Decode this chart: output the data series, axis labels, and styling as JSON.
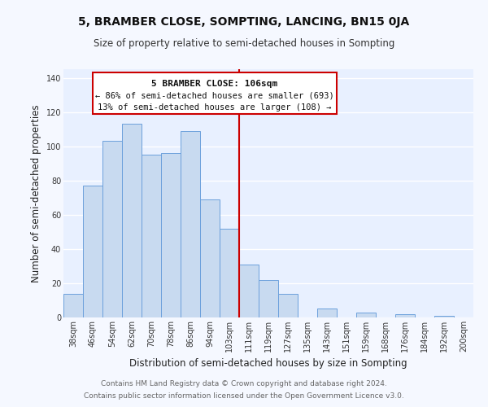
{
  "title": "5, BRAMBER CLOSE, SOMPTING, LANCING, BN15 0JA",
  "subtitle": "Size of property relative to semi-detached houses in Sompting",
  "xlabel": "Distribution of semi-detached houses by size in Sompting",
  "ylabel": "Number of semi-detached properties",
  "bar_labels": [
    "38sqm",
    "46sqm",
    "54sqm",
    "62sqm",
    "70sqm",
    "78sqm",
    "86sqm",
    "94sqm",
    "103sqm",
    "111sqm",
    "119sqm",
    "127sqm",
    "135sqm",
    "143sqm",
    "151sqm",
    "159sqm",
    "168sqm",
    "176sqm",
    "184sqm",
    "192sqm",
    "200sqm"
  ],
  "bar_heights": [
    14,
    77,
    103,
    113,
    95,
    96,
    109,
    69,
    52,
    31,
    22,
    14,
    0,
    5,
    0,
    3,
    0,
    2,
    0,
    1,
    0
  ],
  "bar_color": "#c8daf0",
  "bar_edge_color": "#6ca0dc",
  "vline_x_index": 8,
  "vline_color": "#cc0000",
  "annotation_title": "5 BRAMBER CLOSE: 106sqm",
  "annotation_line1": "← 86% of semi-detached houses are smaller (693)",
  "annotation_line2": "13% of semi-detached houses are larger (108) →",
  "annotation_box_color": "#ffffff",
  "annotation_box_edge": "#cc0000",
  "ylim": [
    0,
    145
  ],
  "yticks": [
    0,
    20,
    40,
    60,
    80,
    100,
    120,
    140
  ],
  "footnote1": "Contains HM Land Registry data © Crown copyright and database right 2024.",
  "footnote2": "Contains public sector information licensed under the Open Government Licence v3.0.",
  "fig_background_color": "#f5f8ff",
  "plot_background_color": "#e8f0ff",
  "grid_color": "#ffffff",
  "title_fontsize": 10,
  "subtitle_fontsize": 8.5,
  "axis_label_fontsize": 8.5,
  "tick_fontsize": 7,
  "footnote_fontsize": 6.5,
  "annot_title_fontsize": 8,
  "annot_text_fontsize": 7.5
}
